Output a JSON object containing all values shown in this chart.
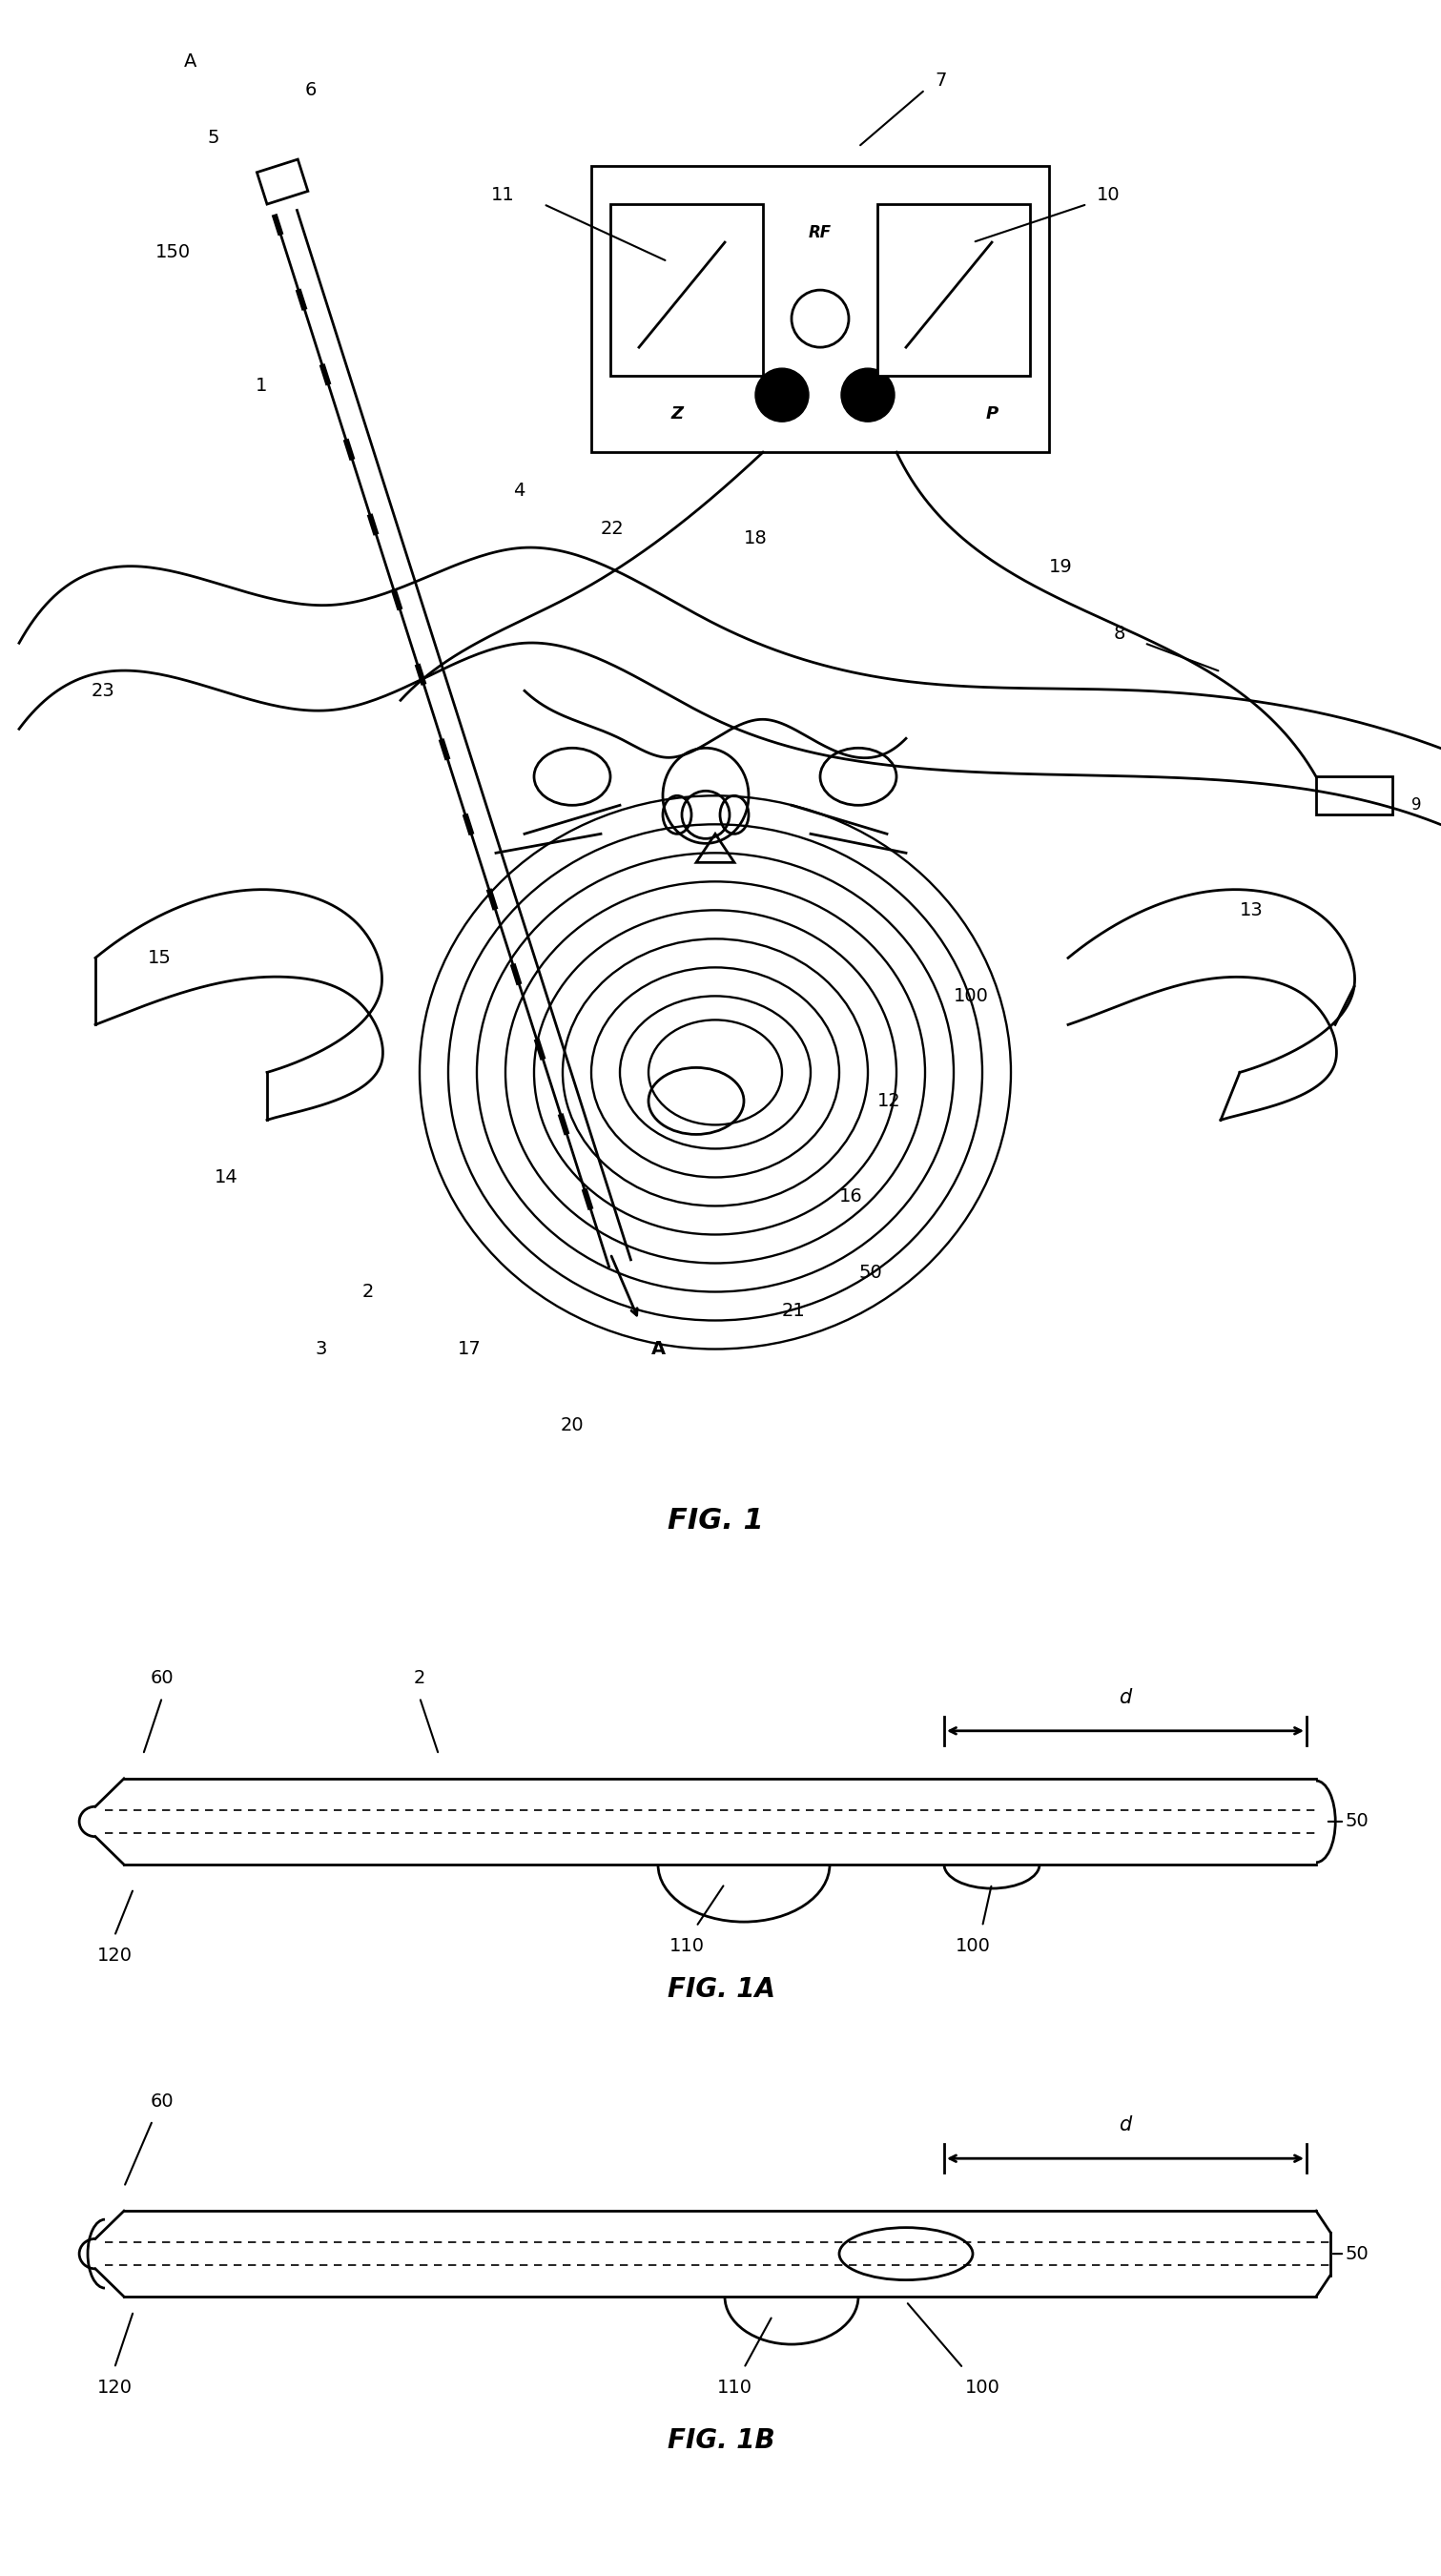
{
  "bg_color": "#ffffff",
  "line_color": "#000000",
  "fig1_label": "FIG. 1",
  "fig1a_label": "FIG. 1A",
  "fig1b_label": "FIG. 1B"
}
